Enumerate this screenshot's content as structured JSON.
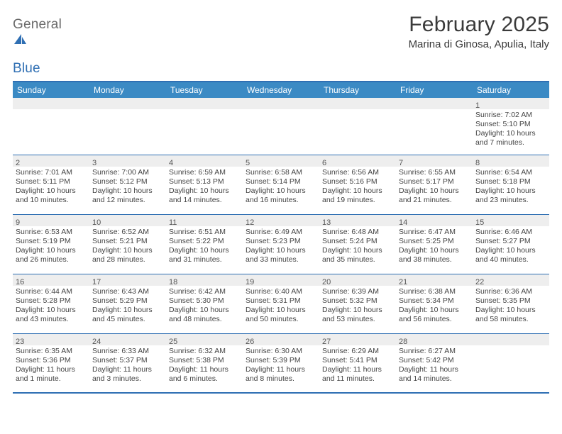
{
  "brand": {
    "general": "General",
    "blue": "Blue"
  },
  "title": "February 2025",
  "location": "Marina di Ginosa, Apulia, Italy",
  "colors": {
    "header_bar": "#3b8ac4",
    "divider": "#2f6fb3",
    "row_sep": "#2f6fb3",
    "daynum_bg": "#eeeeee",
    "text": "#444444",
    "title_text": "#3a3a3a",
    "logo_gray": "#6a6a6a",
    "logo_blue": "#2f6fb3",
    "background": "#ffffff"
  },
  "fonts": {
    "title_size_pt": 30,
    "location_size_pt": 15,
    "weekday_size_pt": 12,
    "daynum_size_pt": 11,
    "body_size_pt": 10.5
  },
  "calendar": {
    "weekdays": [
      "Sunday",
      "Monday",
      "Tuesday",
      "Wednesday",
      "Thursday",
      "Friday",
      "Saturday"
    ],
    "weeks": [
      [
        {
          "day": "",
          "sunrise": "",
          "sunset": "",
          "daylight": ""
        },
        {
          "day": "",
          "sunrise": "",
          "sunset": "",
          "daylight": ""
        },
        {
          "day": "",
          "sunrise": "",
          "sunset": "",
          "daylight": ""
        },
        {
          "day": "",
          "sunrise": "",
          "sunset": "",
          "daylight": ""
        },
        {
          "day": "",
          "sunrise": "",
          "sunset": "",
          "daylight": ""
        },
        {
          "day": "",
          "sunrise": "",
          "sunset": "",
          "daylight": ""
        },
        {
          "day": "1",
          "sunrise": "Sunrise: 7:02 AM",
          "sunset": "Sunset: 5:10 PM",
          "daylight": "Daylight: 10 hours and 7 minutes."
        }
      ],
      [
        {
          "day": "2",
          "sunrise": "Sunrise: 7:01 AM",
          "sunset": "Sunset: 5:11 PM",
          "daylight": "Daylight: 10 hours and 10 minutes."
        },
        {
          "day": "3",
          "sunrise": "Sunrise: 7:00 AM",
          "sunset": "Sunset: 5:12 PM",
          "daylight": "Daylight: 10 hours and 12 minutes."
        },
        {
          "day": "4",
          "sunrise": "Sunrise: 6:59 AM",
          "sunset": "Sunset: 5:13 PM",
          "daylight": "Daylight: 10 hours and 14 minutes."
        },
        {
          "day": "5",
          "sunrise": "Sunrise: 6:58 AM",
          "sunset": "Sunset: 5:14 PM",
          "daylight": "Daylight: 10 hours and 16 minutes."
        },
        {
          "day": "6",
          "sunrise": "Sunrise: 6:56 AM",
          "sunset": "Sunset: 5:16 PM",
          "daylight": "Daylight: 10 hours and 19 minutes."
        },
        {
          "day": "7",
          "sunrise": "Sunrise: 6:55 AM",
          "sunset": "Sunset: 5:17 PM",
          "daylight": "Daylight: 10 hours and 21 minutes."
        },
        {
          "day": "8",
          "sunrise": "Sunrise: 6:54 AM",
          "sunset": "Sunset: 5:18 PM",
          "daylight": "Daylight: 10 hours and 23 minutes."
        }
      ],
      [
        {
          "day": "9",
          "sunrise": "Sunrise: 6:53 AM",
          "sunset": "Sunset: 5:19 PM",
          "daylight": "Daylight: 10 hours and 26 minutes."
        },
        {
          "day": "10",
          "sunrise": "Sunrise: 6:52 AM",
          "sunset": "Sunset: 5:21 PM",
          "daylight": "Daylight: 10 hours and 28 minutes."
        },
        {
          "day": "11",
          "sunrise": "Sunrise: 6:51 AM",
          "sunset": "Sunset: 5:22 PM",
          "daylight": "Daylight: 10 hours and 31 minutes."
        },
        {
          "day": "12",
          "sunrise": "Sunrise: 6:49 AM",
          "sunset": "Sunset: 5:23 PM",
          "daylight": "Daylight: 10 hours and 33 minutes."
        },
        {
          "day": "13",
          "sunrise": "Sunrise: 6:48 AM",
          "sunset": "Sunset: 5:24 PM",
          "daylight": "Daylight: 10 hours and 35 minutes."
        },
        {
          "day": "14",
          "sunrise": "Sunrise: 6:47 AM",
          "sunset": "Sunset: 5:25 PM",
          "daylight": "Daylight: 10 hours and 38 minutes."
        },
        {
          "day": "15",
          "sunrise": "Sunrise: 6:46 AM",
          "sunset": "Sunset: 5:27 PM",
          "daylight": "Daylight: 10 hours and 40 minutes."
        }
      ],
      [
        {
          "day": "16",
          "sunrise": "Sunrise: 6:44 AM",
          "sunset": "Sunset: 5:28 PM",
          "daylight": "Daylight: 10 hours and 43 minutes."
        },
        {
          "day": "17",
          "sunrise": "Sunrise: 6:43 AM",
          "sunset": "Sunset: 5:29 PM",
          "daylight": "Daylight: 10 hours and 45 minutes."
        },
        {
          "day": "18",
          "sunrise": "Sunrise: 6:42 AM",
          "sunset": "Sunset: 5:30 PM",
          "daylight": "Daylight: 10 hours and 48 minutes."
        },
        {
          "day": "19",
          "sunrise": "Sunrise: 6:40 AM",
          "sunset": "Sunset: 5:31 PM",
          "daylight": "Daylight: 10 hours and 50 minutes."
        },
        {
          "day": "20",
          "sunrise": "Sunrise: 6:39 AM",
          "sunset": "Sunset: 5:32 PM",
          "daylight": "Daylight: 10 hours and 53 minutes."
        },
        {
          "day": "21",
          "sunrise": "Sunrise: 6:38 AM",
          "sunset": "Sunset: 5:34 PM",
          "daylight": "Daylight: 10 hours and 56 minutes."
        },
        {
          "day": "22",
          "sunrise": "Sunrise: 6:36 AM",
          "sunset": "Sunset: 5:35 PM",
          "daylight": "Daylight: 10 hours and 58 minutes."
        }
      ],
      [
        {
          "day": "23",
          "sunrise": "Sunrise: 6:35 AM",
          "sunset": "Sunset: 5:36 PM",
          "daylight": "Daylight: 11 hours and 1 minute."
        },
        {
          "day": "24",
          "sunrise": "Sunrise: 6:33 AM",
          "sunset": "Sunset: 5:37 PM",
          "daylight": "Daylight: 11 hours and 3 minutes."
        },
        {
          "day": "25",
          "sunrise": "Sunrise: 6:32 AM",
          "sunset": "Sunset: 5:38 PM",
          "daylight": "Daylight: 11 hours and 6 minutes."
        },
        {
          "day": "26",
          "sunrise": "Sunrise: 6:30 AM",
          "sunset": "Sunset: 5:39 PM",
          "daylight": "Daylight: 11 hours and 8 minutes."
        },
        {
          "day": "27",
          "sunrise": "Sunrise: 6:29 AM",
          "sunset": "Sunset: 5:41 PM",
          "daylight": "Daylight: 11 hours and 11 minutes."
        },
        {
          "day": "28",
          "sunrise": "Sunrise: 6:27 AM",
          "sunset": "Sunset: 5:42 PM",
          "daylight": "Daylight: 11 hours and 14 minutes."
        },
        {
          "day": "",
          "sunrise": "",
          "sunset": "",
          "daylight": ""
        }
      ]
    ]
  }
}
